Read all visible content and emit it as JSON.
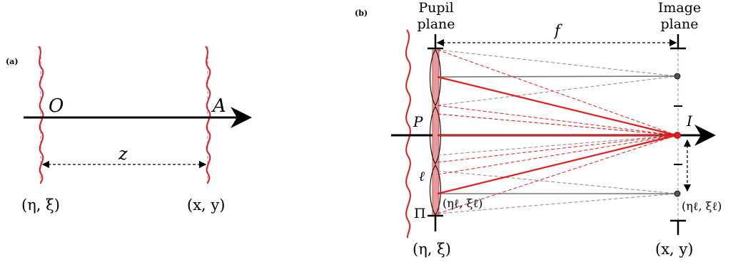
{
  "panel_a": {
    "tag": "(a)",
    "origin_label": "O",
    "end_label": "A",
    "distance_label": "z",
    "source_coords": "(η, ξ)",
    "target_coords": "(x, y)"
  },
  "panel_b": {
    "tag": "(b)",
    "pupil_plane_line1": "Pupil",
    "pupil_plane_line2": "plane",
    "image_plane_line1": "Image",
    "image_plane_line2": "plane",
    "focal_label": "f",
    "point_P": "P",
    "point_I": "I",
    "lenslet_label": "ℓ",
    "pupil_label": "Π",
    "lenslet_coords": "(ηℓ, ξℓ)",
    "image_lenslet_coords": "(ηℓ, ξℓ)",
    "pupil_coords": "(η, ξ)",
    "image_coords": "(x, y)"
  },
  "colors": {
    "wave": "#e41a1c",
    "ray_red": "#e41a1c",
    "ray_grey": "#888888",
    "dashed_plane": "#8a8aa8",
    "axis": "#000000"
  }
}
